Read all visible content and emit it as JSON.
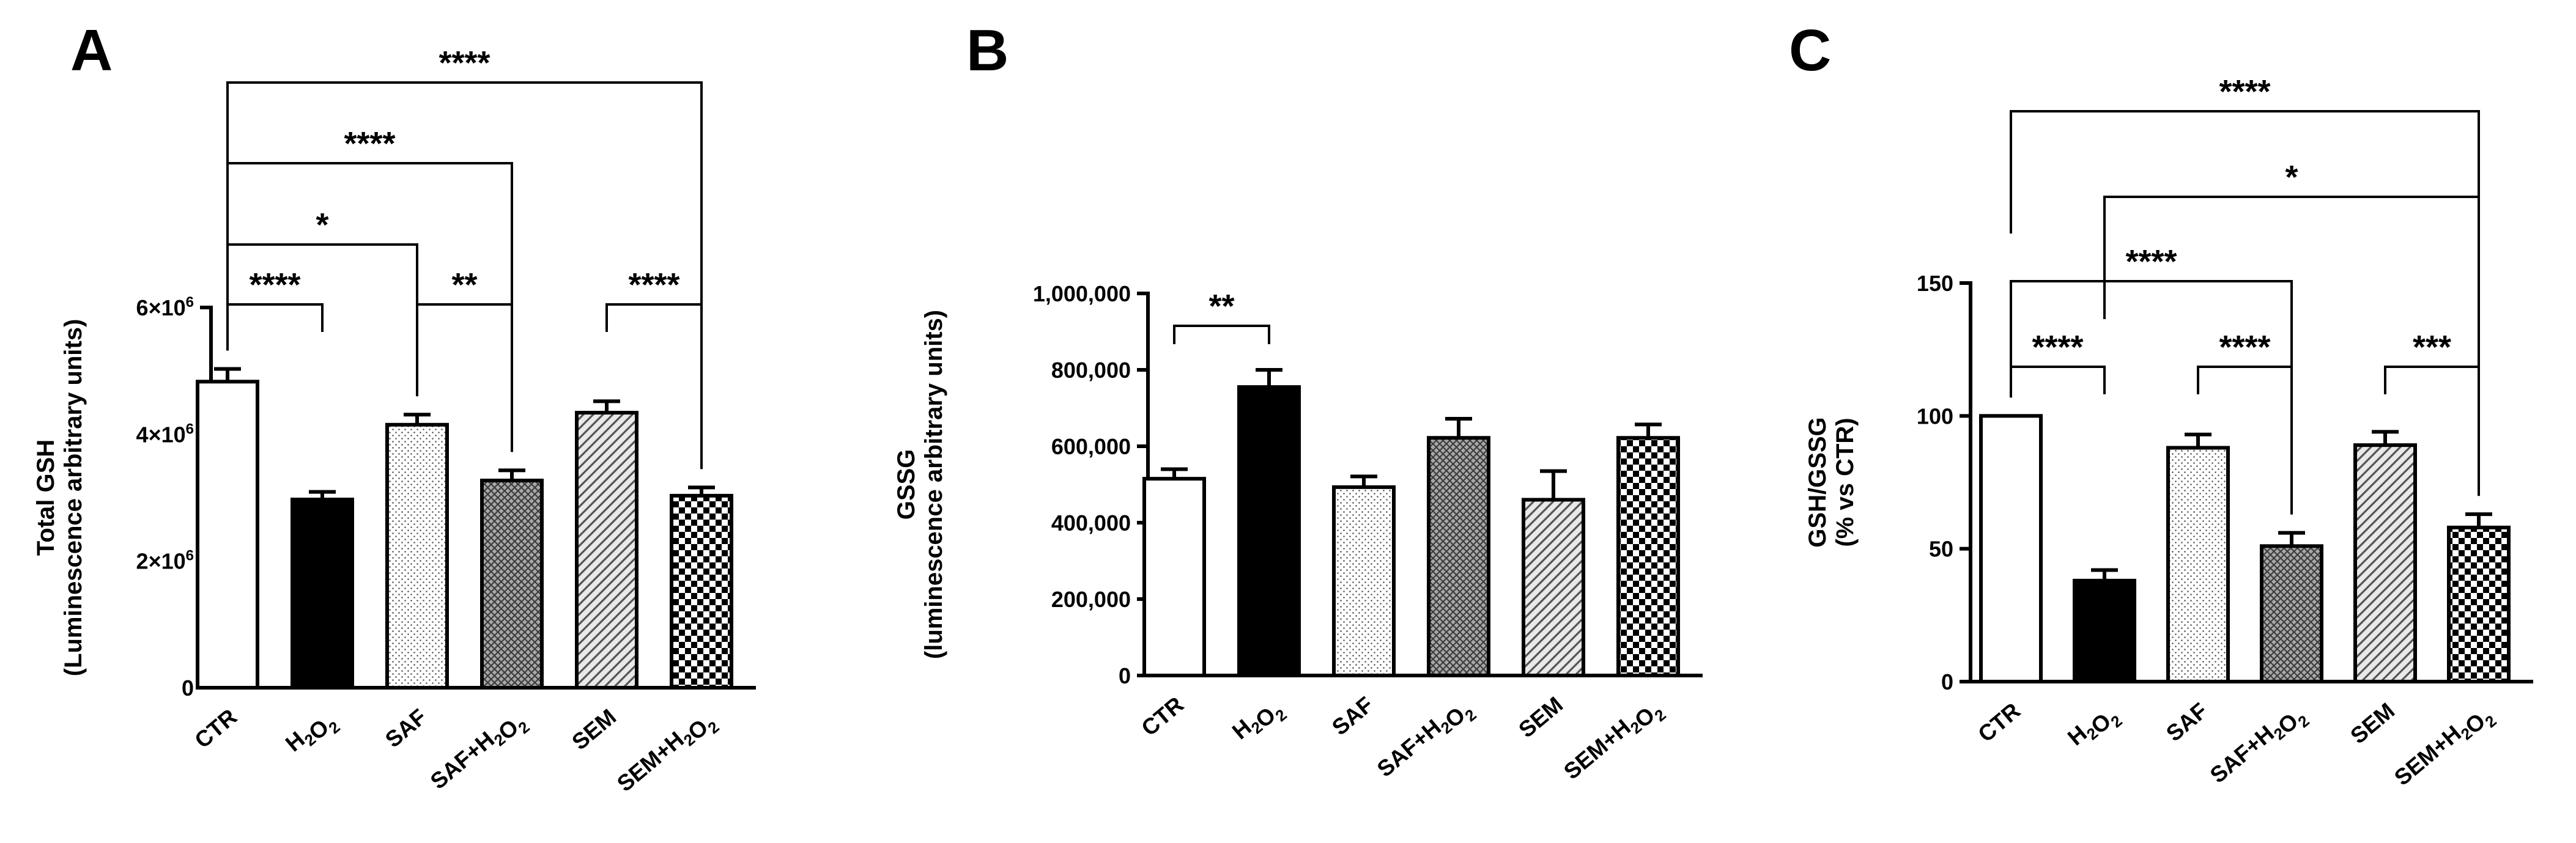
{
  "chart_data": [
    {
      "panel": "A",
      "type": "bar",
      "ylabel": [
        "Total GSH",
        "(Luminescence arbitrary units)"
      ],
      "ylim": [
        0,
        6000000
      ],
      "yticks": [
        {
          "value": 0,
          "label": "0",
          "exp": ""
        },
        {
          "value": 2000000,
          "label": "2×10",
          "exp": "6"
        },
        {
          "value": 4000000,
          "label": "4×10",
          "exp": "6"
        },
        {
          "value": 6000000,
          "label": "6×10",
          "exp": "6"
        }
      ],
      "categories": [
        {
          "base": "CTR",
          "sub": ""
        },
        {
          "base": "H2O2",
          "sub": "h2o2"
        },
        {
          "base": "SAF",
          "sub": ""
        },
        {
          "base": "SAF+H2O2",
          "sub": "safh2o2"
        },
        {
          "base": "SEM",
          "sub": ""
        },
        {
          "base": "SEM+H2O2",
          "sub": "semh2o2"
        }
      ],
      "values": [
        4830000,
        2970000,
        4150000,
        3270000,
        4340000,
        3030000
      ],
      "errors": [
        200000,
        120000,
        160000,
        160000,
        180000,
        130000
      ],
      "patterns": [
        "white",
        "black",
        "dots",
        "crosshatch",
        "diagonal",
        "checker"
      ],
      "significance": [
        {
          "from": 0,
          "to": 1,
          "label": "****",
          "level": 0
        },
        {
          "from": 2,
          "to": 3,
          "label": "**",
          "level": 0
        },
        {
          "from": 4,
          "to": 5,
          "label": "****",
          "level": 0
        },
        {
          "from": 0,
          "to": 2,
          "label": "*",
          "level": 1
        },
        {
          "from": 0,
          "to": 3,
          "label": "****",
          "level": 2
        },
        {
          "from": 0,
          "to": 5,
          "label": "****",
          "level": 3
        }
      ]
    },
    {
      "panel": "B",
      "type": "bar",
      "ylabel": [
        "GSSG",
        "(luminescence arbitrary units)"
      ],
      "ylim": [
        0,
        1000000
      ],
      "yticks": [
        {
          "value": 0,
          "label": "0",
          "exp": ""
        },
        {
          "value": 200000,
          "label": "200,000",
          "exp": ""
        },
        {
          "value": 400000,
          "label": "400,000",
          "exp": ""
        },
        {
          "value": 600000,
          "label": "600,000",
          "exp": ""
        },
        {
          "value": 800000,
          "label": "800,000",
          "exp": ""
        },
        {
          "value": 1000000,
          "label": "1,000,000",
          "exp": ""
        }
      ],
      "categories": [
        {
          "base": "CTR",
          "sub": ""
        },
        {
          "base": "H2O2",
          "sub": "h2o2"
        },
        {
          "base": "SAF",
          "sub": ""
        },
        {
          "base": "SAF+H2O2",
          "sub": "safh2o2"
        },
        {
          "base": "SEM",
          "sub": ""
        },
        {
          "base": "SEM+H2O2",
          "sub": "semh2o2"
        }
      ],
      "values": [
        515000,
        755000,
        493000,
        622000,
        460000,
        622000
      ],
      "errors": [
        25000,
        45000,
        28000,
        50000,
        75000,
        35000
      ],
      "patterns": [
        "white",
        "black",
        "dots",
        "crosshatch",
        "diagonal",
        "checker"
      ],
      "significance": [
        {
          "from": 0,
          "to": 1,
          "label": "**",
          "level": 0
        }
      ]
    },
    {
      "panel": "C",
      "type": "bar",
      "ylabel": [
        "GSH/GSSG",
        "(% vs CTR)"
      ],
      "ylim": [
        0,
        150
      ],
      "yticks": [
        {
          "value": 0,
          "label": "0",
          "exp": ""
        },
        {
          "value": 50,
          "label": "50",
          "exp": ""
        },
        {
          "value": 100,
          "label": "100",
          "exp": ""
        },
        {
          "value": 150,
          "label": "150",
          "exp": ""
        }
      ],
      "categories": [
        {
          "base": "CTR",
          "sub": ""
        },
        {
          "base": "H2O2",
          "sub": "h2o2"
        },
        {
          "base": "SAF",
          "sub": ""
        },
        {
          "base": "SAF+H2O2",
          "sub": "safh2o2"
        },
        {
          "base": "SEM",
          "sub": ""
        },
        {
          "base": "SEM+H2O2",
          "sub": "semh2o2"
        }
      ],
      "values": [
        100,
        38,
        88,
        51,
        89,
        58
      ],
      "errors": [
        0,
        4,
        5,
        5,
        5,
        5
      ],
      "patterns": [
        "white",
        "black",
        "dots",
        "crosshatch",
        "diagonal",
        "checker"
      ],
      "significance": [
        {
          "from": 0,
          "to": 1,
          "label": "****",
          "level": 0
        },
        {
          "from": 2,
          "to": 3,
          "label": "****",
          "level": 0
        },
        {
          "from": 4,
          "to": 5,
          "label": "***",
          "level": 0
        },
        {
          "from": 0,
          "to": 3,
          "label": "****",
          "level": 1
        },
        {
          "from": 1,
          "to": 5,
          "label": "*",
          "level": 2
        },
        {
          "from": 0,
          "to": 5,
          "label": "****",
          "level": 3
        }
      ]
    }
  ]
}
